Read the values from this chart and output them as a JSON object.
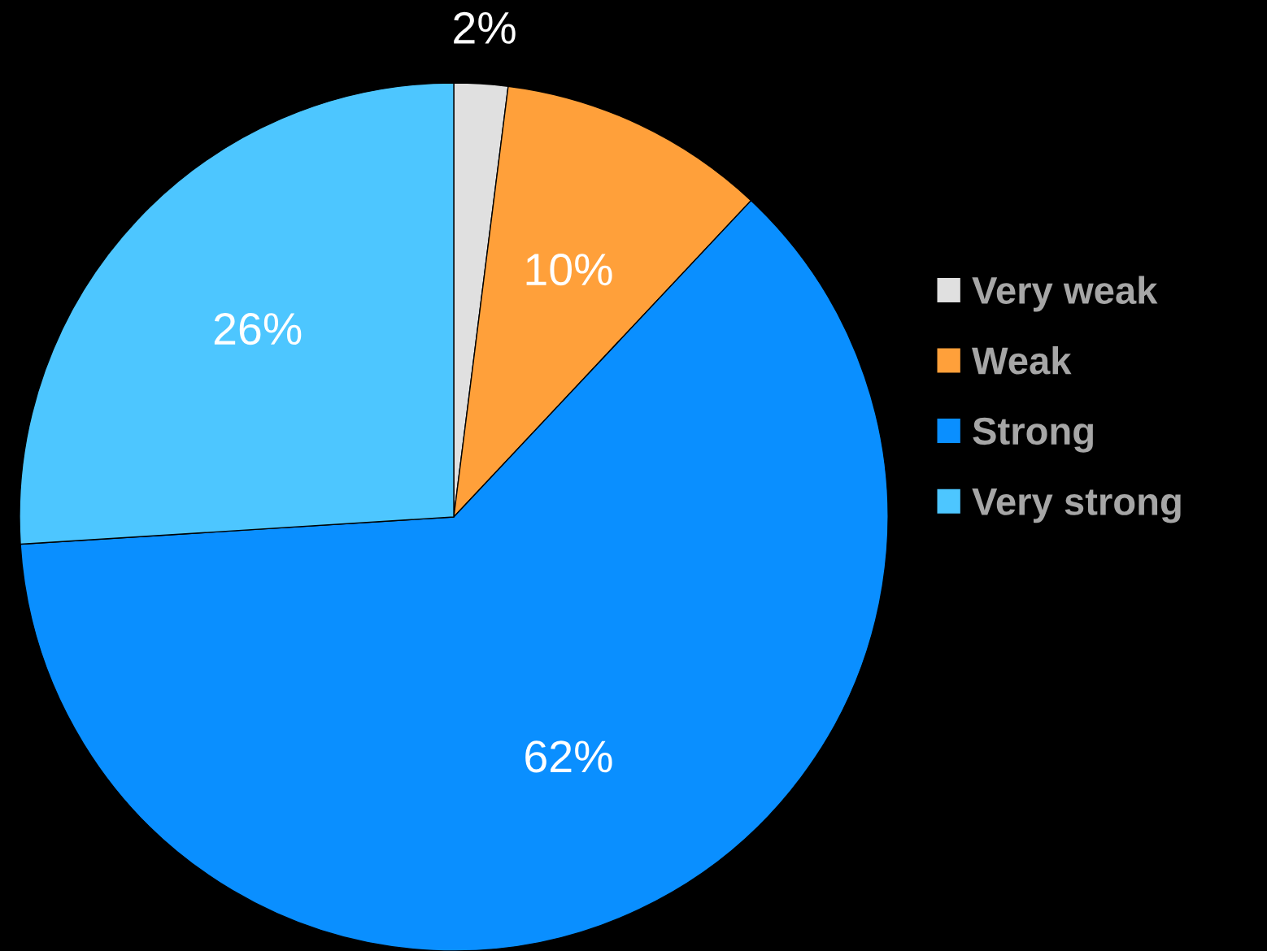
{
  "chart_data": {
    "type": "pie",
    "categories": [
      "Very weak",
      "Weak",
      "Strong",
      "Very strong"
    ],
    "values": [
      2,
      10,
      62,
      26
    ],
    "colors": [
      "#e0e0e0",
      "#ffa03a",
      "#0a8fff",
      "#4dc6ff"
    ],
    "value_labels": [
      "2%",
      "10%",
      "62%",
      "26%"
    ],
    "legend": "right"
  }
}
